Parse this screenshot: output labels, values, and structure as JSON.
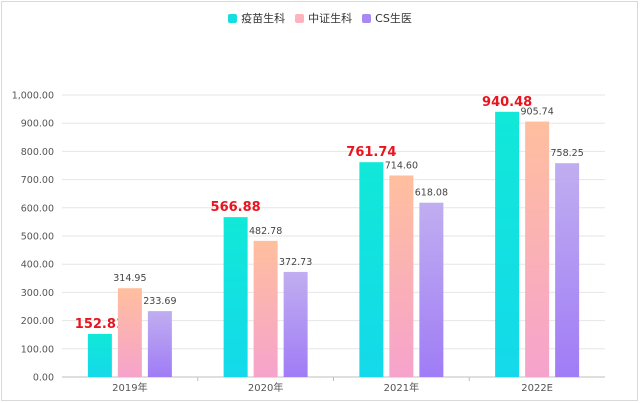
{
  "chart_data": {
    "type": "bar",
    "categories": [
      "2019年",
      "2020年",
      "2021年",
      "2022E"
    ],
    "series": [
      {
        "name": "疫苗生科",
        "values": [
          152.81,
          566.88,
          761.74,
          940.48
        ],
        "label_style": "highlight"
      },
      {
        "name": "中证生科",
        "values": [
          314.95,
          482.78,
          714.6,
          905.74
        ],
        "label_style": "normal"
      },
      {
        "name": "CS生医",
        "values": [
          233.69,
          372.73,
          618.08,
          758.25
        ],
        "label_style": "normal"
      }
    ],
    "value_labels": [
      [
        "152.81",
        "566.88",
        "761.74",
        "940.48"
      ],
      [
        "314.95",
        "482.78",
        "714.60",
        "905.74"
      ],
      [
        "233.69",
        "372.73",
        "618.08",
        "758.25"
      ]
    ],
    "yticks": [
      0,
      100,
      200,
      300,
      400,
      500,
      600,
      700,
      800,
      900,
      1000
    ],
    "ytick_labels": [
      "0.00",
      "100.00",
      "200.00",
      "300.00",
      "400.00",
      "500.00",
      "600.00",
      "700.00",
      "800.00",
      "900.00",
      "1,000.00"
    ],
    "ylim": [
      0,
      1000
    ],
    "grid": true,
    "legend_position": "top-center",
    "colors": {
      "series_top": [
        "#11e8d8",
        "#ffbf9e",
        "#c0aef0"
      ],
      "series_bottom": [
        "#14d9ea",
        "#f6a3cc",
        "#a07cf6"
      ],
      "highlight_label": "#e8141e",
      "label": "#444444",
      "axis_text": "#555555",
      "grid": "#e6e6e6"
    }
  }
}
